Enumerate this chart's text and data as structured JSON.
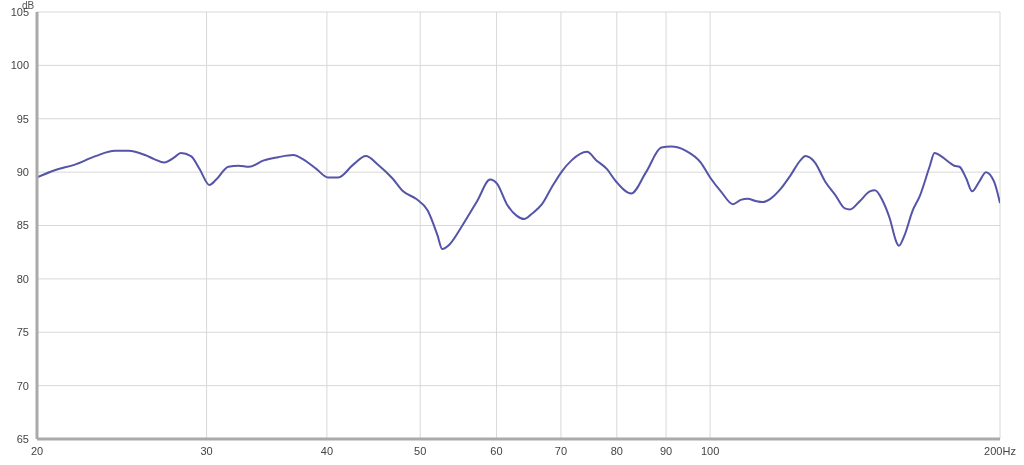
{
  "chart_data": {
    "type": "line",
    "ylabel": "dB",
    "log": "x",
    "grid": true,
    "legend": false,
    "marker": "none",
    "line_style": "solid",
    "xlim": [
      20,
      200
    ],
    "xticks": [
      20,
      30,
      40,
      50,
      60,
      70,
      80,
      90,
      100,
      {
        "value": 200,
        "label": "200Hz"
      }
    ],
    "ylim": [
      65,
      105
    ],
    "yticks": [
      65,
      70,
      75,
      80,
      85,
      90,
      95,
      100,
      105
    ],
    "x": [
      20.0,
      20.9,
      21.9,
      23.0,
      24.1,
      24.9,
      25.9,
      26.5,
      27.1,
      27.8,
      28.2,
      28.9,
      29.5,
      30.2,
      30.7,
      31.6,
      32.4,
      33.2,
      34.4,
      35.6,
      36.9,
      37.8,
      39.0,
      40.1,
      41.1,
      42.6,
      43.9,
      45.2,
      46.8,
      48.0,
      49.5,
      50.9,
      52.1,
      52.7,
      53.6,
      55.3,
      57.3,
      59.1,
      60.1,
      61.5,
      63.0,
      64.1,
      65.3,
      66.9,
      68.5,
      70.2,
      71.8,
      74.5,
      76.2,
      78.1,
      79.9,
      82.8,
      85.8,
      89.0,
      91.1,
      94.4,
      97.8,
      100,
      102.6,
      105.6,
      107.6,
      109.4,
      111.5,
      113.4,
      115.5,
      118.3,
      121.2,
      124.1,
      125.6,
      128.5,
      131.7,
      134.8,
      138.0,
      139.7,
      143.1,
      146.5,
      148.3,
      151.1,
      153.6,
      156.2,
      157.0,
      159.2,
      162.3,
      165.0,
      169.0,
      171.0,
      174.3,
      177.2,
      179.3,
      181.5,
      184.5,
      187.1,
      190.3,
      193.4,
      197.2,
      200
    ],
    "series": [
      {
        "color": "#5454a8",
        "values": [
          89.5,
          90.2,
          90.7,
          91.5,
          92.0,
          92.0,
          91.6,
          91.2,
          90.9,
          91.4,
          91.8,
          91.5,
          90.3,
          88.8,
          89.3,
          90.5,
          90.6,
          90.5,
          91.1,
          91.4,
          91.6,
          91.2,
          90.3,
          89.5,
          89.5,
          90.7,
          91.5,
          90.7,
          89.4,
          88.2,
          87.5,
          86.4,
          84.1,
          82.8,
          83.2,
          85.0,
          87.3,
          89.3,
          88.9,
          87.0,
          85.9,
          85.6,
          86.1,
          87.0,
          88.6,
          90.1,
          91.1,
          91.9,
          91.1,
          90.3,
          89.1,
          88.0,
          90.0,
          92.3,
          92.4,
          92.0,
          90.9,
          89.5,
          88.2,
          87.0,
          87.4,
          87.5,
          87.3,
          87.2,
          87.5,
          88.4,
          89.7,
          91.1,
          91.5,
          90.9,
          89.1,
          87.9,
          86.6,
          86.5,
          87.3,
          88.2,
          88.3,
          87.3,
          85.7,
          83.4,
          83.1,
          84.1,
          86.4,
          87.7,
          90.5,
          91.8,
          91.4,
          90.9,
          90.6,
          90.5,
          89.4,
          88.2,
          89.1,
          90.0,
          89.1,
          87.1
        ]
      }
    ]
  }
}
